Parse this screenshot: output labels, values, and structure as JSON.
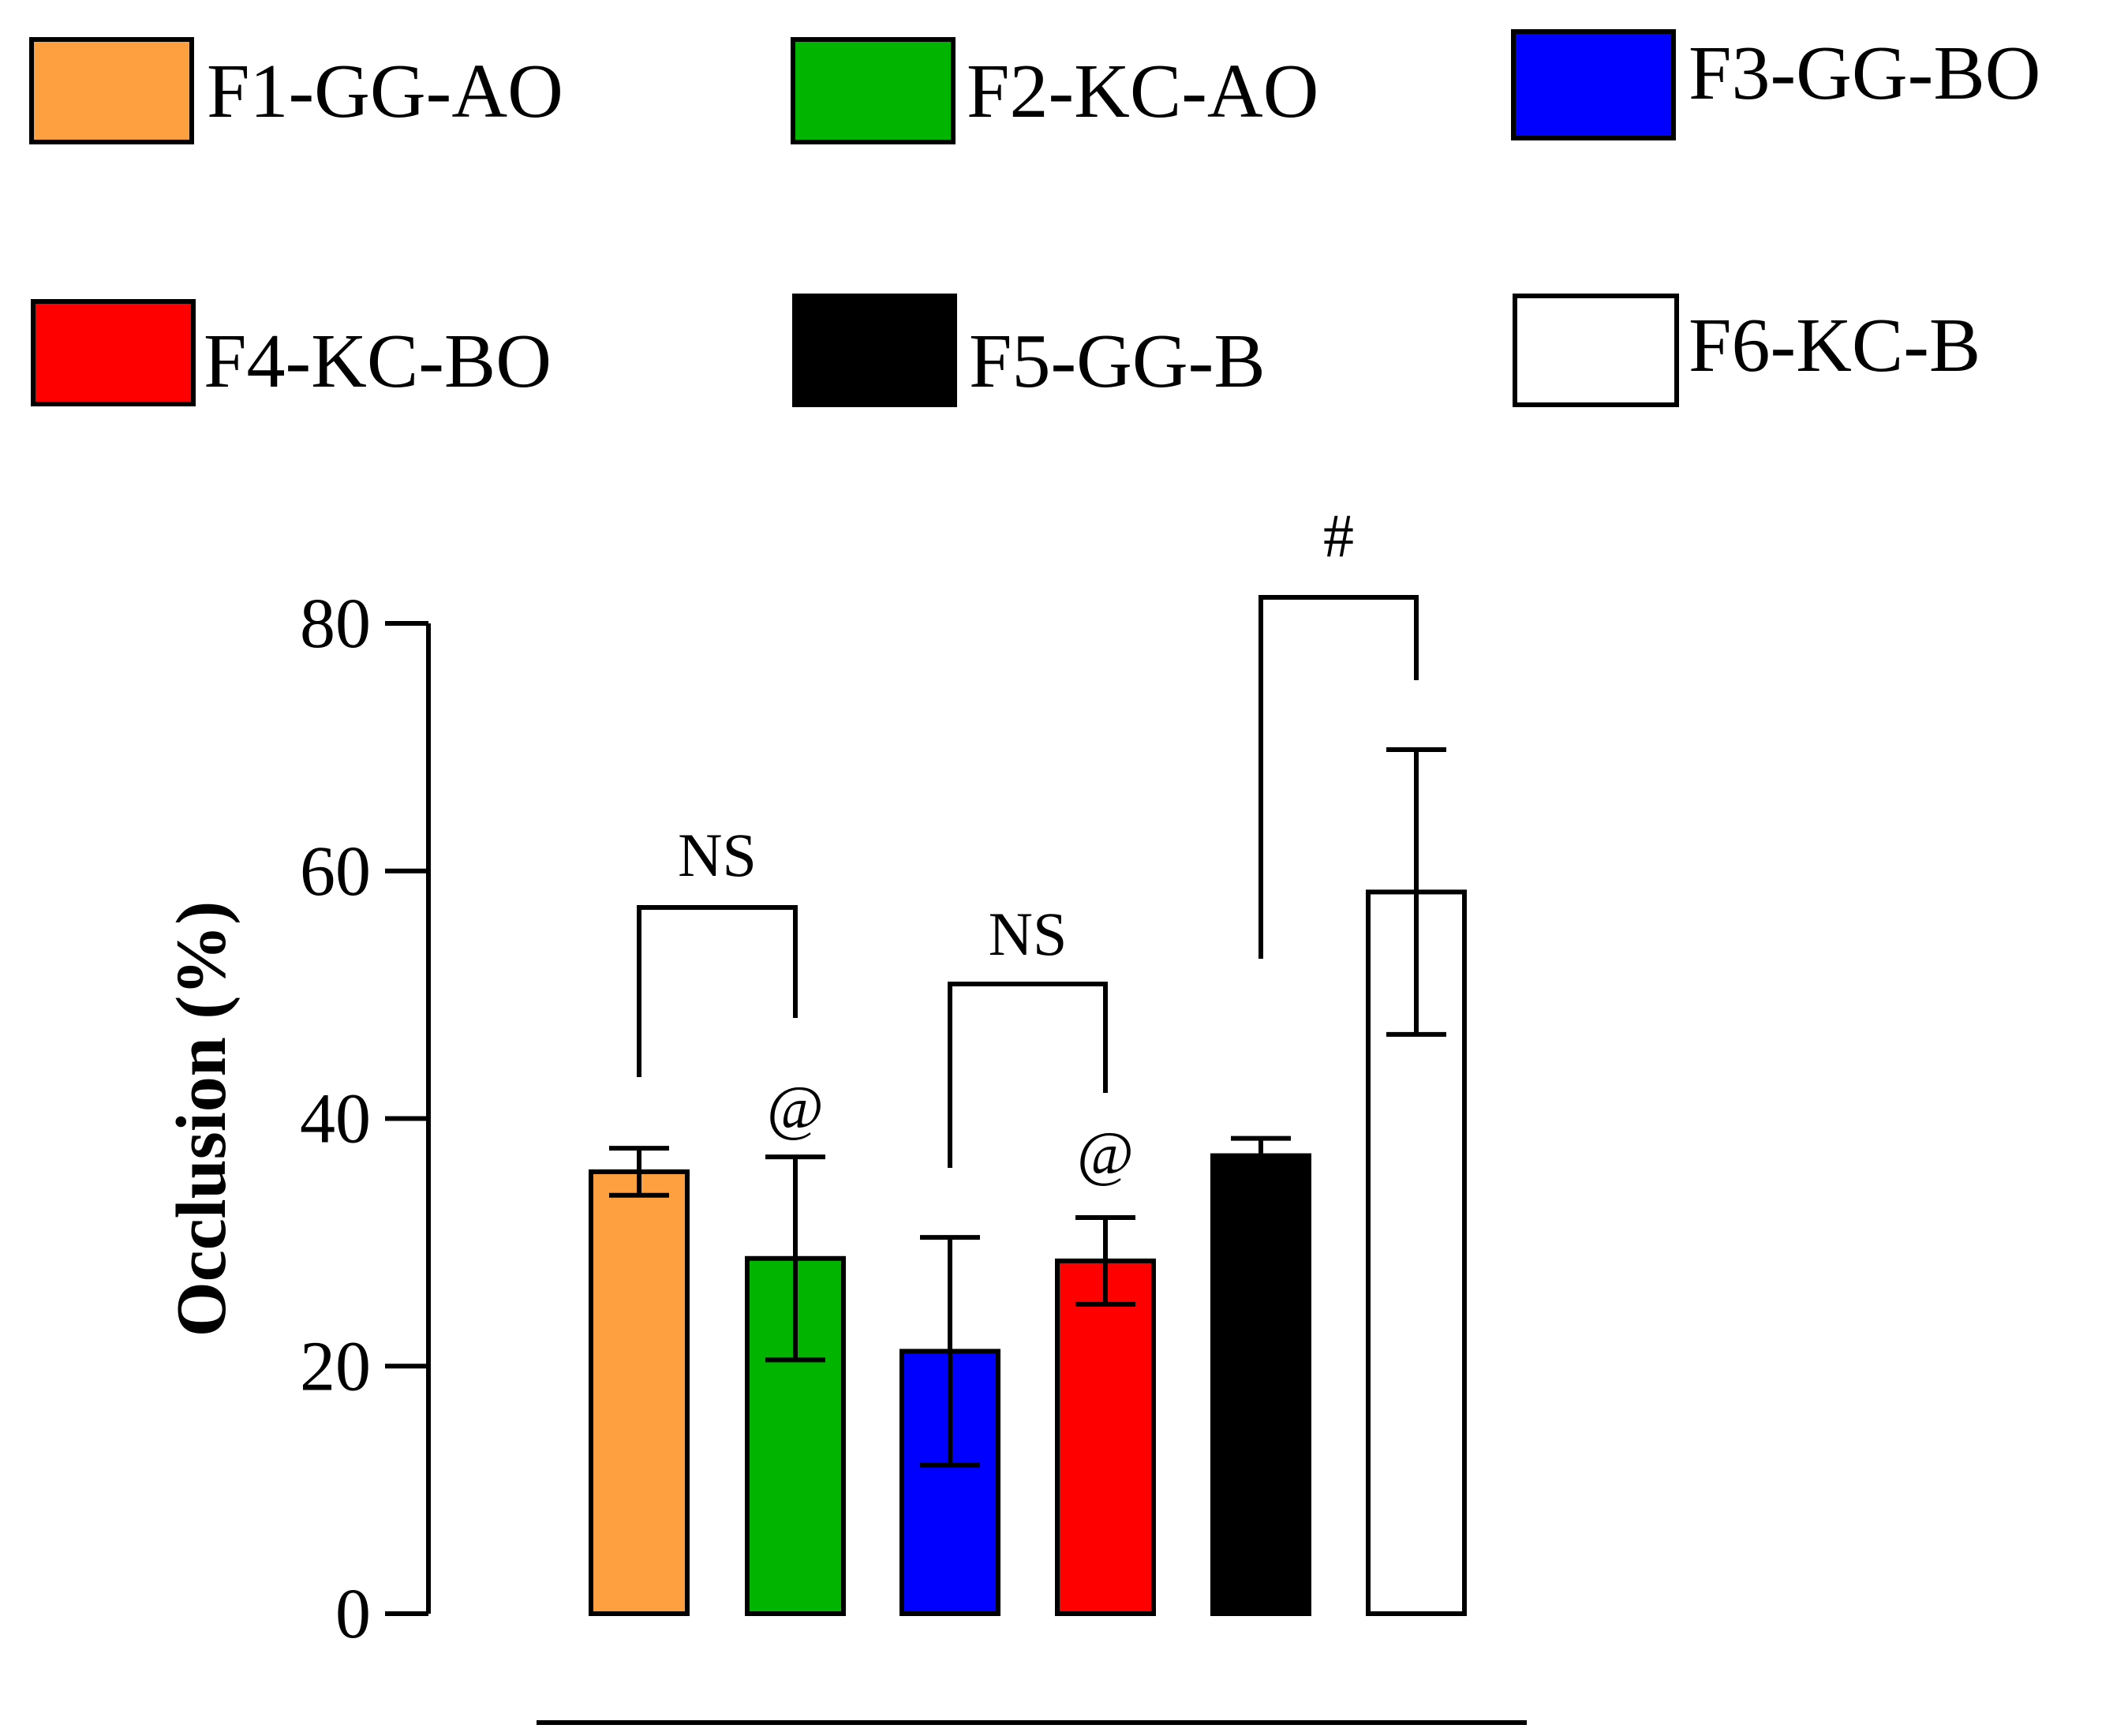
{
  "chart_data": {
    "type": "bar",
    "title": "",
    "xlabel": "",
    "ylabel": "Occlusion (%)",
    "ylim": [
      0,
      80
    ],
    "yticks": [
      0,
      20,
      40,
      60,
      80
    ],
    "grid": false,
    "legend_position": "top",
    "categories": [
      "F1-GG-AO",
      "F2-KC-AO",
      "F3-GG-BO",
      "F4-KC-BO",
      "F5-GG-B",
      "F6-KC-B"
    ],
    "values": [
      35.7,
      28.7,
      21.2,
      28.5,
      37.0,
      58.3
    ],
    "errors": [
      1.9,
      8.2,
      9.2,
      3.5,
      1.4,
      11.5
    ],
    "colors": [
      "#FFA040",
      "#00B400",
      "#0000FF",
      "#FF0000",
      "#000000",
      "#FFFFFF"
    ],
    "annotations": {
      "brackets": [
        {
          "from": 0,
          "to": 1,
          "label": "NS"
        },
        {
          "from": 2,
          "to": 3,
          "label": "NS"
        },
        {
          "from": 4,
          "to": 5,
          "label": "#"
        }
      ],
      "bar_marks": [
        {
          "bar": 1,
          "label": "@"
        },
        {
          "bar": 3,
          "label": "@"
        }
      ]
    }
  }
}
